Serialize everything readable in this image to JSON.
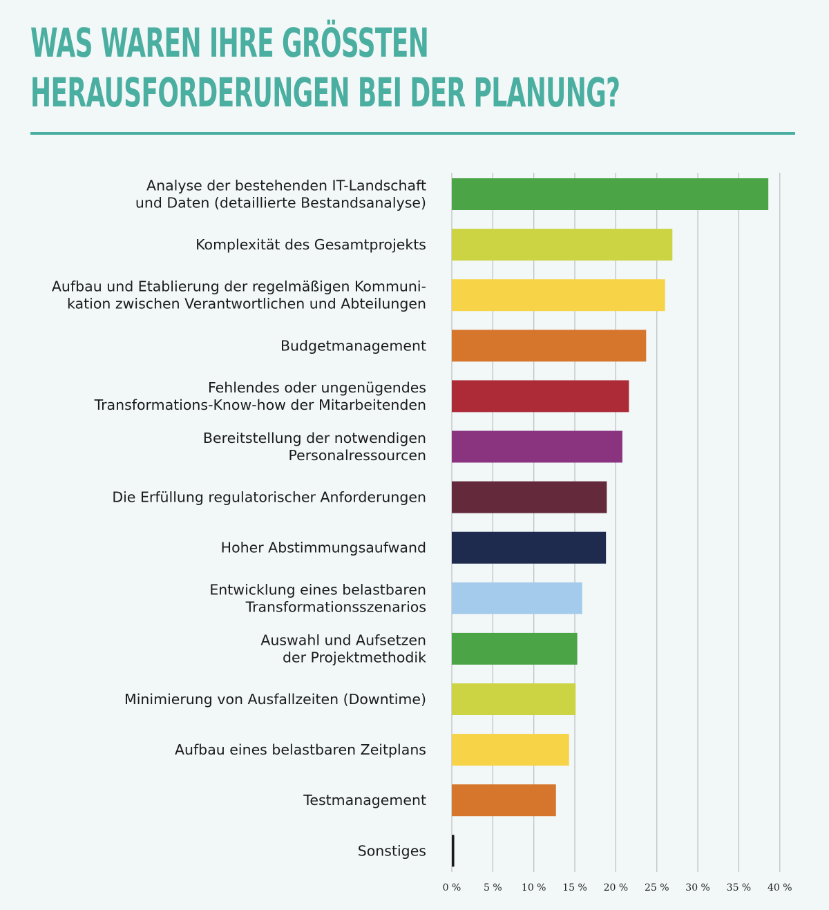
{
  "title": {
    "line1": "WAS WAREN IHRE GRÖSSTEN",
    "line2": "HERAUSFORDERUNGEN BEI DER PLANUNG?"
  },
  "chart_data": {
    "type": "bar",
    "orientation": "horizontal",
    "categories": [
      [
        "Analyse der bestehenden IT-Landschaft",
        "und Daten (detaillierte Bestandsanalyse)"
      ],
      [
        "Komplexität des Gesamtprojekts"
      ],
      [
        "Aufbau und Etablierung der regelmäßigen Kommuni-",
        "kation zwischen Verantwortlichen und Abteilungen"
      ],
      [
        "Budgetmanagement"
      ],
      [
        "Fehlendes oder ungenügendes",
        "Transformations-Know-how der Mitarbeitenden"
      ],
      [
        "Bereitstellung der notwendigen",
        "Personalressourcen"
      ],
      [
        "Die Erfüllung regulatorischer Anforderungen"
      ],
      [
        "Hoher Abstimmungsaufwand"
      ],
      [
        "Entwicklung eines belastbaren",
        "Transformationsszenarios"
      ],
      [
        "Auswahl und Aufsetzen",
        "der Projektmethodik"
      ],
      [
        "Minimierung von Ausfallzeiten (Downtime)"
      ],
      [
        "Aufbau eines belastbaren Zeitplans"
      ],
      [
        "Testmanagement"
      ],
      [
        "Sonstiges"
      ]
    ],
    "values": [
      38.6,
      26.9,
      26.0,
      23.7,
      21.6,
      20.8,
      18.9,
      18.8,
      15.9,
      15.3,
      15.1,
      14.3,
      12.7,
      0.3
    ],
    "colors": [
      "#4ba546",
      "#cdd443",
      "#f7d447",
      "#d6762d",
      "#ad2a37",
      "#8a3480",
      "#64293a",
      "#1f2b4e",
      "#a5cbec",
      "#4ba546",
      "#cdd443",
      "#f7d447",
      "#d6762d",
      "#1a1a1a"
    ],
    "xlim": [
      0,
      40
    ],
    "xticks": [
      0,
      5,
      10,
      15,
      20,
      25,
      30,
      35,
      40
    ],
    "xtick_labels": [
      "0 %",
      "5 %",
      "10 %",
      "15 %",
      "20 %",
      "25 %",
      "30 %",
      "35 %",
      "40 %"
    ],
    "grid": "vertical",
    "gridline_color": "#b9bdbd"
  }
}
